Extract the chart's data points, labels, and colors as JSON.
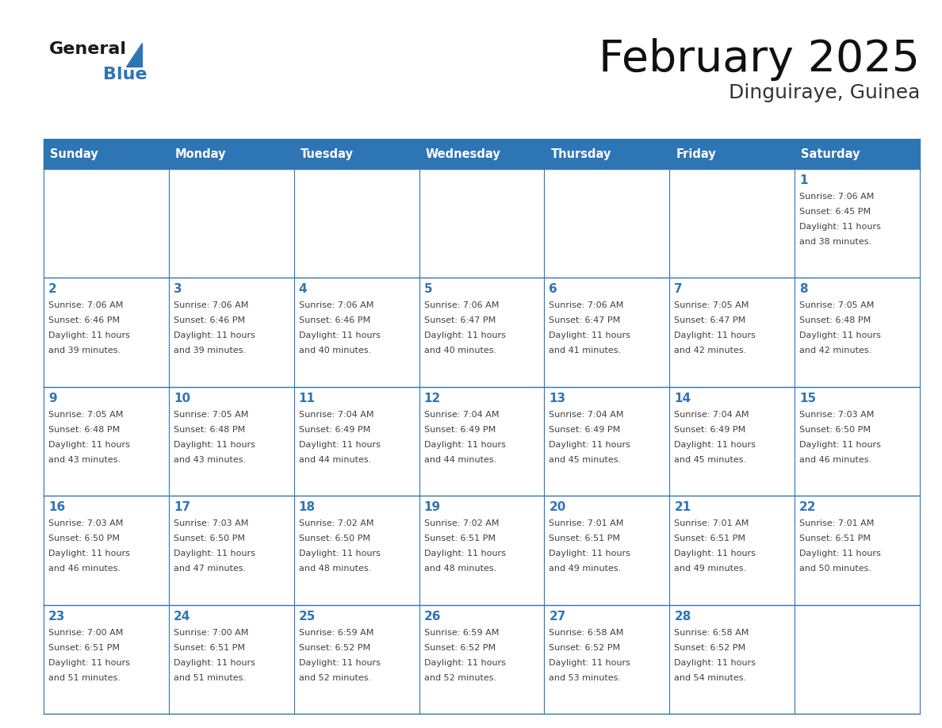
{
  "title": "February 2025",
  "subtitle": "Dinguiraye, Guinea",
  "header_color": "#2E75B6",
  "header_text_color": "#FFFFFF",
  "cell_bg_color": "#FFFFFF",
  "border_color": "#2E75B6",
  "day_number_color": "#2E75B6",
  "cell_text_color": "#404040",
  "days_of_week": [
    "Sunday",
    "Monday",
    "Tuesday",
    "Wednesday",
    "Thursday",
    "Friday",
    "Saturday"
  ],
  "calendar_data": [
    [
      null,
      null,
      null,
      null,
      null,
      null,
      {
        "day": 1,
        "sunrise": "7:06 AM",
        "sunset": "6:45 PM",
        "daylight": "11 hours and 38 minutes"
      }
    ],
    [
      {
        "day": 2,
        "sunrise": "7:06 AM",
        "sunset": "6:46 PM",
        "daylight": "11 hours and 39 minutes"
      },
      {
        "day": 3,
        "sunrise": "7:06 AM",
        "sunset": "6:46 PM",
        "daylight": "11 hours and 39 minutes"
      },
      {
        "day": 4,
        "sunrise": "7:06 AM",
        "sunset": "6:46 PM",
        "daylight": "11 hours and 40 minutes"
      },
      {
        "day": 5,
        "sunrise": "7:06 AM",
        "sunset": "6:47 PM",
        "daylight": "11 hours and 40 minutes"
      },
      {
        "day": 6,
        "sunrise": "7:06 AM",
        "sunset": "6:47 PM",
        "daylight": "11 hours and 41 minutes"
      },
      {
        "day": 7,
        "sunrise": "7:05 AM",
        "sunset": "6:47 PM",
        "daylight": "11 hours and 42 minutes"
      },
      {
        "day": 8,
        "sunrise": "7:05 AM",
        "sunset": "6:48 PM",
        "daylight": "11 hours and 42 minutes"
      }
    ],
    [
      {
        "day": 9,
        "sunrise": "7:05 AM",
        "sunset": "6:48 PM",
        "daylight": "11 hours and 43 minutes"
      },
      {
        "day": 10,
        "sunrise": "7:05 AM",
        "sunset": "6:48 PM",
        "daylight": "11 hours and 43 minutes"
      },
      {
        "day": 11,
        "sunrise": "7:04 AM",
        "sunset": "6:49 PM",
        "daylight": "11 hours and 44 minutes"
      },
      {
        "day": 12,
        "sunrise": "7:04 AM",
        "sunset": "6:49 PM",
        "daylight": "11 hours and 44 minutes"
      },
      {
        "day": 13,
        "sunrise": "7:04 AM",
        "sunset": "6:49 PM",
        "daylight": "11 hours and 45 minutes"
      },
      {
        "day": 14,
        "sunrise": "7:04 AM",
        "sunset": "6:49 PM",
        "daylight": "11 hours and 45 minutes"
      },
      {
        "day": 15,
        "sunrise": "7:03 AM",
        "sunset": "6:50 PM",
        "daylight": "11 hours and 46 minutes"
      }
    ],
    [
      {
        "day": 16,
        "sunrise": "7:03 AM",
        "sunset": "6:50 PM",
        "daylight": "11 hours and 46 minutes"
      },
      {
        "day": 17,
        "sunrise": "7:03 AM",
        "sunset": "6:50 PM",
        "daylight": "11 hours and 47 minutes"
      },
      {
        "day": 18,
        "sunrise": "7:02 AM",
        "sunset": "6:50 PM",
        "daylight": "11 hours and 48 minutes"
      },
      {
        "day": 19,
        "sunrise": "7:02 AM",
        "sunset": "6:51 PM",
        "daylight": "11 hours and 48 minutes"
      },
      {
        "day": 20,
        "sunrise": "7:01 AM",
        "sunset": "6:51 PM",
        "daylight": "11 hours and 49 minutes"
      },
      {
        "day": 21,
        "sunrise": "7:01 AM",
        "sunset": "6:51 PM",
        "daylight": "11 hours and 49 minutes"
      },
      {
        "day": 22,
        "sunrise": "7:01 AM",
        "sunset": "6:51 PM",
        "daylight": "11 hours and 50 minutes"
      }
    ],
    [
      {
        "day": 23,
        "sunrise": "7:00 AM",
        "sunset": "6:51 PM",
        "daylight": "11 hours and 51 minutes"
      },
      {
        "day": 24,
        "sunrise": "7:00 AM",
        "sunset": "6:51 PM",
        "daylight": "11 hours and 51 minutes"
      },
      {
        "day": 25,
        "sunrise": "6:59 AM",
        "sunset": "6:52 PM",
        "daylight": "11 hours and 52 minutes"
      },
      {
        "day": 26,
        "sunrise": "6:59 AM",
        "sunset": "6:52 PM",
        "daylight": "11 hours and 52 minutes"
      },
      {
        "day": 27,
        "sunrise": "6:58 AM",
        "sunset": "6:52 PM",
        "daylight": "11 hours and 53 minutes"
      },
      {
        "day": 28,
        "sunrise": "6:58 AM",
        "sunset": "6:52 PM",
        "daylight": "11 hours and 54 minutes"
      },
      null
    ]
  ]
}
